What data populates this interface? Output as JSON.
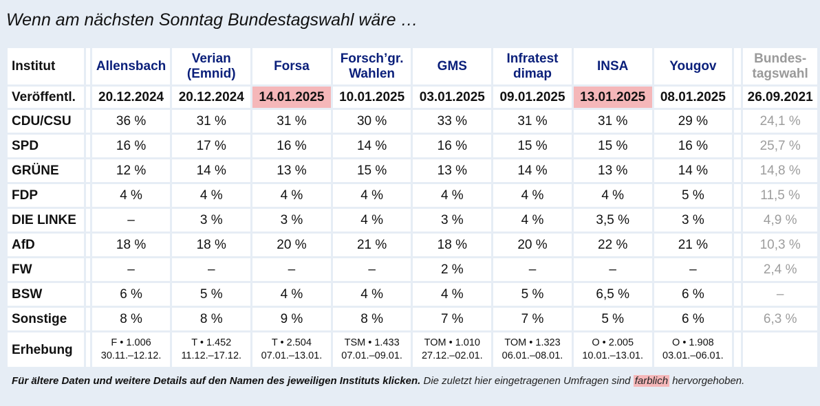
{
  "title": "Wenn am nächsten Sonntag Bundestagswahl wäre …",
  "row_labels": {
    "institut": "Institut",
    "published": "Veröffentl.",
    "erhebung": "Erhebung"
  },
  "institutes": [
    {
      "name": "Allensbach",
      "date": "20.12.2024",
      "highlight": false,
      "erh_1": "F • 1.006",
      "erh_2": "30.11.–12.12."
    },
    {
      "name": "Verian (Emnid)",
      "date": "20.12.2024",
      "highlight": false,
      "erh_1": "T • 1.452",
      "erh_2": "11.12.–17.12."
    },
    {
      "name": "Forsa",
      "date": "14.01.2025",
      "highlight": true,
      "erh_1": "T • 2.504",
      "erh_2": "07.01.–13.01."
    },
    {
      "name": "Forsch’gr. Wahlen",
      "date": "10.01.2025",
      "highlight": false,
      "erh_1": "TSM • 1.433",
      "erh_2": "07.01.–09.01."
    },
    {
      "name": "GMS",
      "date": "03.01.2025",
      "highlight": false,
      "erh_1": "TOM • 1.010",
      "erh_2": "27.12.–02.01."
    },
    {
      "name": "Infratest dimap",
      "date": "09.01.2025",
      "highlight": false,
      "erh_1": "TOM • 1.323",
      "erh_2": "06.01.–08.01."
    },
    {
      "name": "INSA",
      "date": "13.01.2025",
      "highlight": true,
      "erh_1": "O • 2.005",
      "erh_2": "10.01.–13.01."
    },
    {
      "name": "Yougov",
      "date": "08.01.2025",
      "highlight": false,
      "erh_1": "O • 1.908",
      "erh_2": "03.01.–06.01."
    }
  ],
  "election": {
    "label": "Bundes-tagswahl",
    "date": "26.09.2021"
  },
  "parties": [
    {
      "name": "CDU/CSU",
      "values": [
        "36 %",
        "31 %",
        "31 %",
        "30 %",
        "33 %",
        "31 %",
        "31 %",
        "29 %"
      ],
      "election": "24,1 %"
    },
    {
      "name": "SPD",
      "values": [
        "16 %",
        "17 %",
        "16 %",
        "14 %",
        "16 %",
        "15 %",
        "15 %",
        "16 %"
      ],
      "election": "25,7 %"
    },
    {
      "name": "GRÜNE",
      "values": [
        "12 %",
        "14 %",
        "13 %",
        "15 %",
        "13 %",
        "14 %",
        "13 %",
        "14 %"
      ],
      "election": "14,8 %"
    },
    {
      "name": "FDP",
      "values": [
        "4 %",
        "4 %",
        "4 %",
        "4 %",
        "4 %",
        "4 %",
        "4 %",
        "5 %"
      ],
      "election": "11,5 %"
    },
    {
      "name": "DIE LINKE",
      "values": [
        "–",
        "3 %",
        "3 %",
        "4 %",
        "3 %",
        "4 %",
        "3,5 %",
        "3 %"
      ],
      "election": "4,9 %"
    },
    {
      "name": "AfD",
      "values": [
        "18 %",
        "18 %",
        "20 %",
        "21 %",
        "18 %",
        "20 %",
        "22 %",
        "21 %"
      ],
      "election": "10,3 %"
    },
    {
      "name": "FW",
      "values": [
        "–",
        "–",
        "–",
        "–",
        "2 %",
        "–",
        "–",
        "–"
      ],
      "election": "2,4 %"
    },
    {
      "name": "BSW",
      "values": [
        "6 %",
        "5 %",
        "4 %",
        "4 %",
        "4 %",
        "5 %",
        "6,5 %",
        "6 %"
      ],
      "election": "–"
    },
    {
      "name": "Sonstige",
      "values": [
        "8 %",
        "8 %",
        "9 %",
        "8 %",
        "7 %",
        "7 %",
        "5 %",
        "6 %"
      ],
      "election": "6,3 %"
    }
  ],
  "footer": {
    "bold": "Für ältere Daten und weitere Details auf den Namen des jeweiligen Instituts klicken.",
    "normal": " Die zuletzt hier eingetragenen Umfragen sind ",
    "marked": "farblich",
    "tail": " hervorgehoben."
  },
  "colors": {
    "background": "#e6edf5",
    "institute_link": "#0a1f7a",
    "highlight": "#f5b7b9",
    "election_text": "#9d9d9d"
  }
}
